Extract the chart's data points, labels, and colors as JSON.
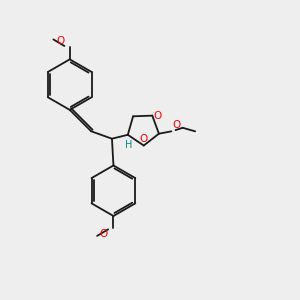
{
  "background_color": "#eeeeee",
  "bond_color": "#1a1a1a",
  "oxygen_color": "#ff0000",
  "H_color": "#008b8b",
  "figsize": [
    3.0,
    3.0
  ],
  "dpi": 100,
  "xlim": [
    0,
    10
  ],
  "ylim": [
    0,
    10
  ],
  "ring_r": 0.85,
  "lw": 1.3
}
